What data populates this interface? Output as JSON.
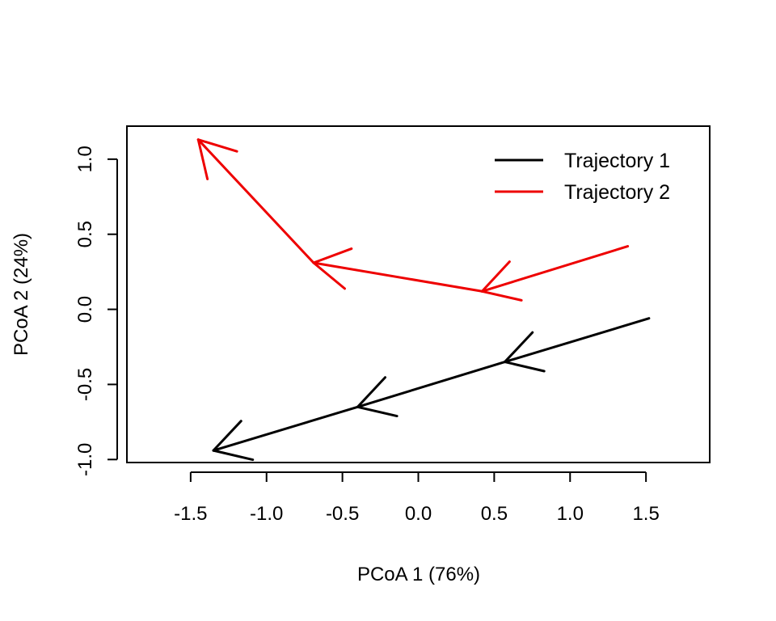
{
  "chart_data": {
    "type": "line",
    "xlabel": "PCoA 1 (76%)",
    "ylabel": "PCoA 2 (24%)",
    "xlim": [
      -1.92,
      1.92
    ],
    "ylim": [
      -1.02,
      1.22
    ],
    "x_ticks": [
      -1.5,
      -1.0,
      -0.5,
      0.0,
      0.5,
      1.0,
      1.5
    ],
    "x_tick_labels": [
      "-1.5",
      "-1.0",
      "-0.5",
      "0.0",
      "0.5",
      "1.0",
      "1.5"
    ],
    "y_ticks": [
      -1.0,
      -0.5,
      0.0,
      0.5,
      1.0
    ],
    "y_tick_labels": [
      "-1.0",
      "-0.5",
      "0.0",
      "0.5",
      "1.0"
    ],
    "grid": false,
    "legend_position": "top-right",
    "series": [
      {
        "name": "Trajectory 1",
        "color": "#000000",
        "points": [
          {
            "x": 1.52,
            "y": -0.06
          },
          {
            "x": 0.57,
            "y": -0.35
          },
          {
            "x": -0.4,
            "y": -0.65
          },
          {
            "x": -1.35,
            "y": -0.94
          }
        ]
      },
      {
        "name": "Trajectory 2",
        "color": "#ee0000",
        "points": [
          {
            "x": 1.38,
            "y": 0.42
          },
          {
            "x": 0.42,
            "y": 0.12
          },
          {
            "x": -0.69,
            "y": 0.31
          },
          {
            "x": -1.45,
            "y": 1.13
          }
        ]
      }
    ]
  }
}
